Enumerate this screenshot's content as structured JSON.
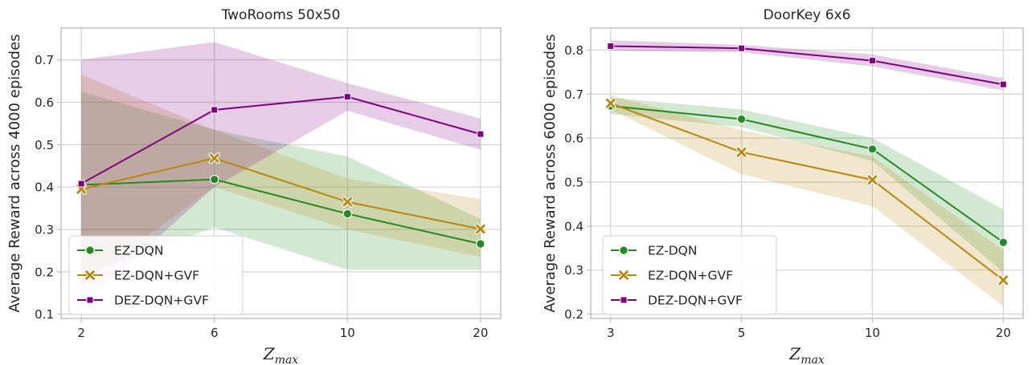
{
  "chart_data": [
    {
      "type": "line",
      "title": "TwoRooms 50x50",
      "xlabel": "Z",
      "xlabel_sub": "max",
      "ylabel": "Average Reward across 4000 episodes",
      "x": [
        2,
        6,
        10,
        20
      ],
      "x_ticks": [
        "2",
        "6",
        "10",
        "20"
      ],
      "ylim": [
        0.09,
        0.775
      ],
      "y_ticks": [
        "0.1",
        "0.2",
        "0.3",
        "0.4",
        "0.5",
        "0.6",
        "0.7"
      ],
      "grid": true,
      "legend_placement": "lower-left",
      "series": [
        {
          "name": "EZ-DQN",
          "color": "#228b22",
          "marker": "circle",
          "values": [
            0.405,
            0.418,
            0.337,
            0.266
          ],
          "lower": [
            0.19,
            0.305,
            0.205,
            0.205
          ],
          "upper": [
            0.625,
            0.535,
            0.472,
            0.325
          ]
        },
        {
          "name": "EZ-DQN+GVF",
          "color": "#b8860b",
          "marker": "x",
          "values": [
            0.395,
            0.468,
            0.365,
            0.301
          ],
          "lower": [
            0.17,
            0.4,
            0.3,
            0.235
          ],
          "upper": [
            0.665,
            0.535,
            0.42,
            0.372
          ]
        },
        {
          "name": "DEZ-DQN+GVF",
          "color": "#800080",
          "marker": "square",
          "values": [
            0.408,
            0.582,
            0.613,
            0.525
          ],
          "lower": [
            0.12,
            0.4,
            0.58,
            0.488
          ],
          "upper": [
            0.7,
            0.742,
            0.645,
            0.562
          ]
        }
      ]
    },
    {
      "type": "line",
      "title": "DoorKey 6x6",
      "xlabel": "Z",
      "xlabel_sub": "max",
      "ylabel": "Average Reward across 6000 episodes",
      "x": [
        3,
        5,
        10,
        20
      ],
      "x_ticks": [
        "3",
        "5",
        "10",
        "20"
      ],
      "ylim": [
        0.19,
        0.85
      ],
      "y_ticks": [
        "0.2",
        "0.3",
        "0.4",
        "0.5",
        "0.6",
        "0.7",
        "0.8"
      ],
      "grid": true,
      "legend_placement": "lower-left",
      "series": [
        {
          "name": "EZ-DQN",
          "color": "#228b22",
          "marker": "circle",
          "values": [
            0.673,
            0.643,
            0.575,
            0.363
          ],
          "lower": [
            0.655,
            0.625,
            0.548,
            0.295
          ],
          "upper": [
            0.692,
            0.665,
            0.6,
            0.438
          ]
        },
        {
          "name": "EZ-DQN+GVF",
          "color": "#b8860b",
          "marker": "x",
          "values": [
            0.679,
            0.568,
            0.505,
            0.277
          ],
          "lower": [
            0.665,
            0.518,
            0.445,
            0.218
          ],
          "upper": [
            0.697,
            0.618,
            0.558,
            0.345
          ]
        },
        {
          "name": "DEZ-DQN+GVF",
          "color": "#800080",
          "marker": "square",
          "values": [
            0.809,
            0.804,
            0.776,
            0.722
          ],
          "lower": [
            0.798,
            0.795,
            0.763,
            0.708
          ],
          "upper": [
            0.822,
            0.812,
            0.79,
            0.736
          ]
        }
      ]
    }
  ]
}
